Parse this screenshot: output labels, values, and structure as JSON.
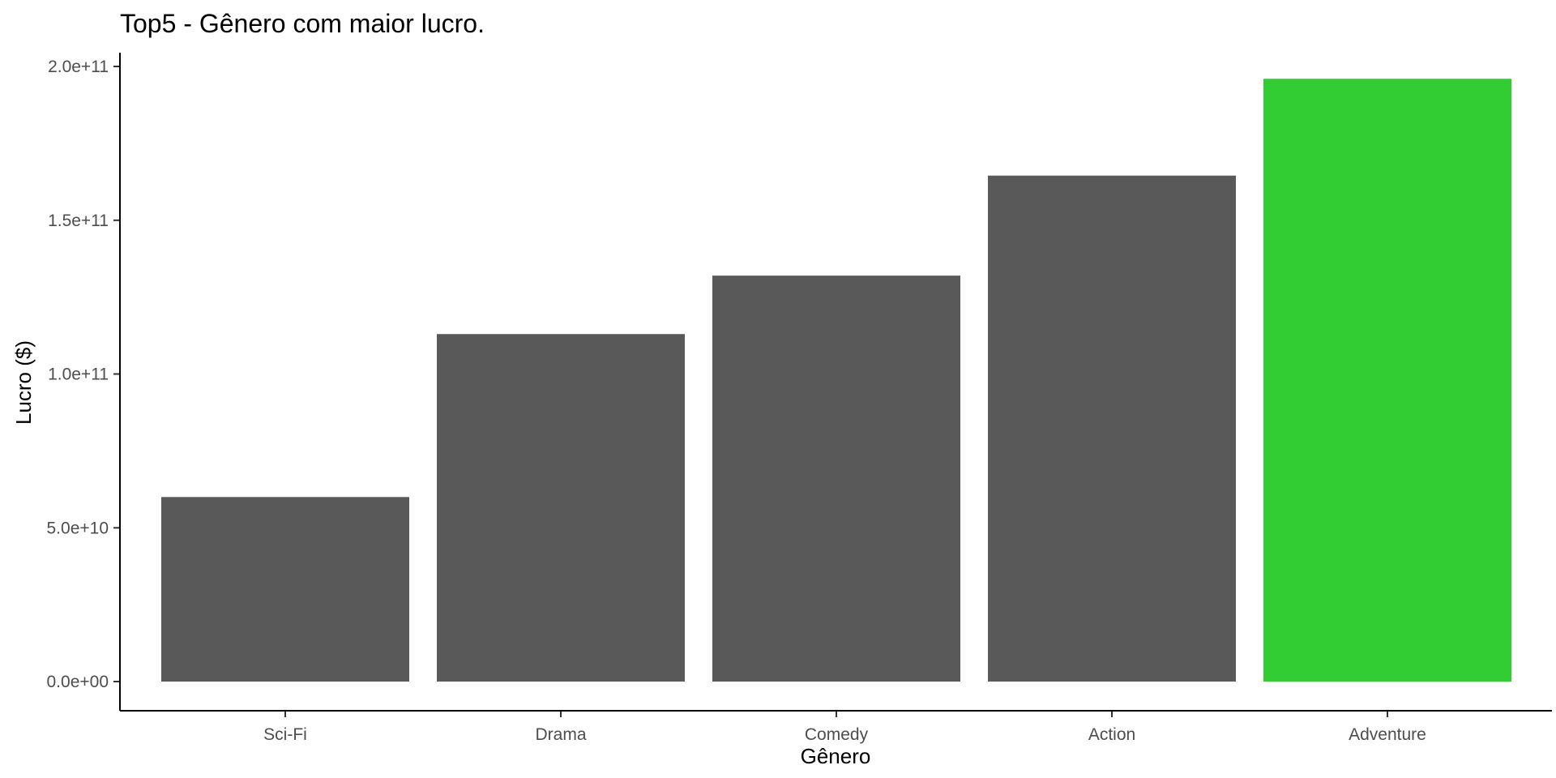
{
  "chart_data": {
    "type": "bar",
    "title": "Top5 - Gênero com maior lucro.",
    "xlabel": "Gênero",
    "ylabel": "Lucro ($)",
    "categories": [
      "Sci-Fi",
      "Drama",
      "Comedy",
      "Action",
      "Adventure"
    ],
    "values": [
      60000000000,
      113000000000,
      132000000000,
      164500000000,
      196000000000
    ],
    "bar_colors": [
      "#595959",
      "#595959",
      "#595959",
      "#595959",
      "#32CD32"
    ],
    "highlight_color": "#32CD32",
    "default_bar_color": "#595959",
    "ylim": [
      0,
      200000000000
    ],
    "yticks": [
      0,
      50000000000,
      100000000000,
      150000000000,
      200000000000
    ],
    "ytick_labels": [
      "0.0e+00",
      "5.0e+10",
      "1.0e+11",
      "1.5e+11",
      "2.0e+11"
    ],
    "grid": false,
    "legend": "none"
  }
}
